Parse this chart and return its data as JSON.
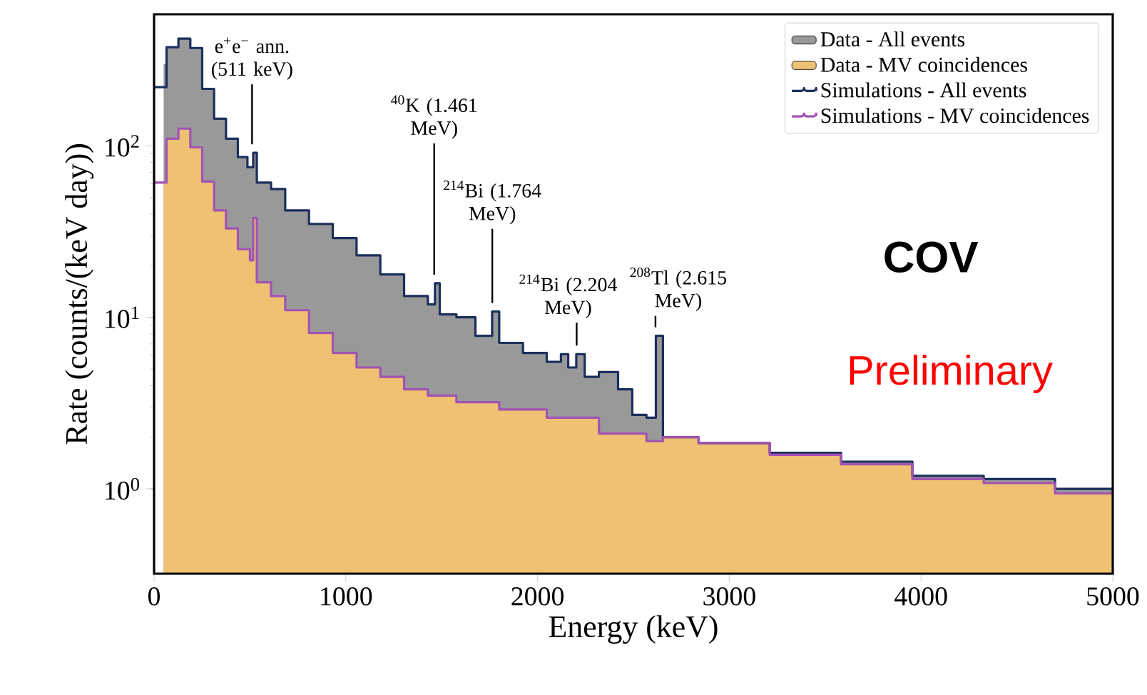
{
  "chart_data": {
    "type": "area",
    "xlabel": "Energy (keV)",
    "ylabel": "Rate (counts/(keV day))",
    "log": "y",
    "legend": "top right",
    "xlim": [
      0,
      5000
    ],
    "xticks": [
      0,
      1000,
      2000,
      3000,
      4000,
      5000
    ],
    "ylim": [
      0.32,
      585
    ],
    "yticks": [
      {
        "value": 1,
        "label": "10$^{0}$"
      },
      {
        "value": 10,
        "label": "10$^{1}$"
      },
      {
        "value": 100,
        "label": "10$^{2}$"
      }
    ],
    "series": [
      {
        "name": "Data - All events",
        "type": "area",
        "color": "#999999",
        "x": [
          50,
          65,
          127,
          189,
          251,
          313,
          375,
          437,
          487,
          517,
          536,
          610,
          684,
          808,
          932,
          1056,
          1180,
          1304,
          1428,
          1465,
          1490,
          1577,
          1676,
          1763,
          1800,
          1924,
          2048,
          2122,
          2160,
          2202,
          2246,
          2320,
          2420,
          2494,
          2568,
          2617,
          2654,
          2840,
          3211,
          3583,
          3955,
          4327,
          4699,
          5000
        ],
        "values": [
          300,
          376,
          422,
          372,
          215,
          144,
          110,
          86,
          75,
          91,
          61,
          56,
          42,
          35,
          29,
          23,
          17.8,
          13.3,
          11.9,
          15.8,
          10.4,
          10.0,
          7.8,
          10.8,
          7.1,
          6.2,
          5.5,
          6.1,
          5.1,
          6.1,
          4.5,
          4.8,
          3.8,
          2.7,
          2.6,
          7.8,
          2.0,
          1.85,
          1.62,
          1.44,
          1.19,
          1.14,
          1.0,
          0.98
        ]
      },
      {
        "name": "Data - MV coincidences",
        "type": "area",
        "color": "#efc172",
        "x": [
          50,
          65,
          127,
          189,
          251,
          313,
          375,
          437,
          500,
          517,
          536,
          610,
          684,
          808,
          932,
          1056,
          1180,
          1304,
          1428,
          1577,
          1800,
          2048,
          2320,
          2568,
          2654,
          2840,
          3211,
          3583,
          3955,
          4327,
          4699,
          5000
        ],
        "values": [
          61,
          110,
          126,
          98,
          62,
          42,
          33,
          25,
          21.5,
          38,
          16,
          13.3,
          11,
          8.1,
          6.2,
          5.1,
          4.5,
          3.8,
          3.5,
          3.2,
          2.9,
          2.6,
          2.1,
          1.9,
          2.0,
          1.85,
          1.58,
          1.39,
          1.14,
          1.08,
          0.94,
          0.94
        ]
      },
      {
        "name": "Simulations - All events",
        "type": "step",
        "color": "#1b2f5c",
        "x": [
          0,
          65,
          127,
          189,
          251,
          313,
          375,
          437,
          487,
          517,
          536,
          610,
          684,
          808,
          932,
          1056,
          1180,
          1304,
          1428,
          1465,
          1490,
          1577,
          1676,
          1763,
          1800,
          1924,
          2048,
          2122,
          2160,
          2202,
          2246,
          2320,
          2420,
          2494,
          2568,
          2617,
          2654,
          2840,
          3211,
          3583,
          3955,
          4327,
          4699,
          5000
        ],
        "values": [
          220,
          376,
          422,
          372,
          215,
          144,
          110,
          86,
          75,
          91,
          61,
          56,
          42,
          35,
          29,
          23,
          17.8,
          13.3,
          11.9,
          15.8,
          10.4,
          10.0,
          7.8,
          10.8,
          7.1,
          6.2,
          5.5,
          6.1,
          5.1,
          6.1,
          4.5,
          4.8,
          3.8,
          2.7,
          2.6,
          7.8,
          2.0,
          1.85,
          1.62,
          1.44,
          1.19,
          1.14,
          1.0,
          0.98
        ]
      },
      {
        "name": "Simulations - MV coincidences",
        "type": "step",
        "color": "#a353b3",
        "x": [
          0,
          65,
          127,
          189,
          251,
          313,
          375,
          437,
          500,
          517,
          536,
          610,
          684,
          808,
          932,
          1056,
          1180,
          1304,
          1428,
          1577,
          1800,
          2048,
          2320,
          2568,
          2654,
          2840,
          3211,
          3583,
          3955,
          4327,
          4699,
          5000
        ],
        "values": [
          61,
          110,
          126,
          98,
          62,
          42,
          33,
          25,
          21.5,
          38,
          16,
          13.3,
          11,
          8.1,
          6.2,
          5.1,
          4.5,
          3.8,
          3.5,
          3.2,
          2.9,
          2.6,
          2.1,
          1.9,
          2.0,
          1.85,
          1.58,
          1.39,
          1.14,
          1.08,
          0.94,
          0.94
        ]
      }
    ],
    "annotations": [
      {
        "text": "e$^{+}$e$^{−}$ ann. (511 keV)",
        "x": 511,
        "y": 91
      },
      {
        "text": "$^{40}$K (1.461 MeV)",
        "x": 1461,
        "y": 15.8
      },
      {
        "text": "$^{214}$Bi (1.764 MeV)",
        "x": 1764,
        "y": 10.8
      },
      {
        "text": "$^{214}$Bi (2.204 MeV)",
        "x": 2204,
        "y": 6.1
      },
      {
        "text": "$^{208}$Tl (2.615 MeV)",
        "x": 2615,
        "y": 7.8
      },
      "COV",
      "Preliminary"
    ]
  }
}
